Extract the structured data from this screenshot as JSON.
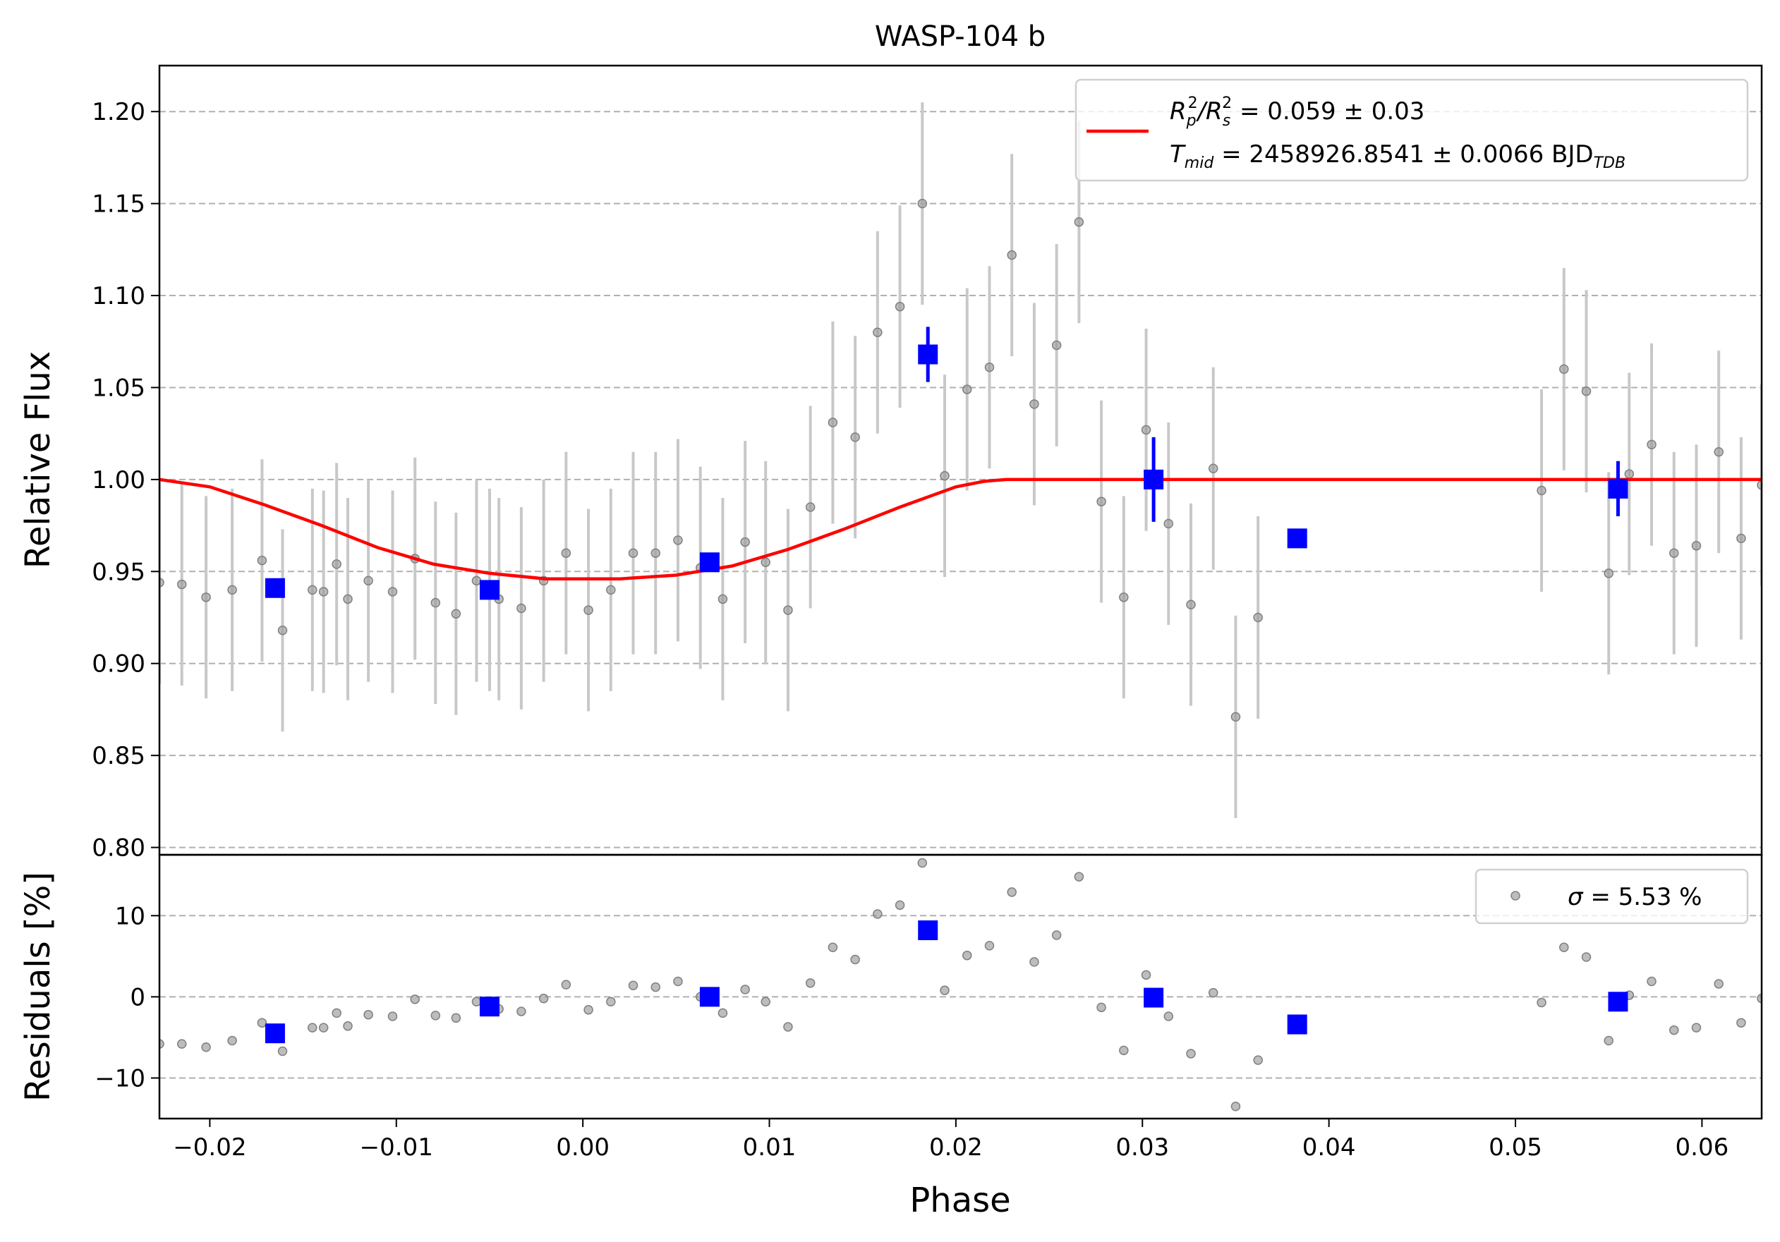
{
  "chart_data": [
    {
      "type": "scatter",
      "panel": "main",
      "title": "WASP-104 b",
      "xlabel": "",
      "ylabel": "Relative Flux",
      "xlim": [
        -0.0227,
        0.0632
      ],
      "ylim": [
        0.796,
        1.225
      ],
      "yticks": [
        0.8,
        0.85,
        0.9,
        0.95,
        1.0,
        1.05,
        1.1,
        1.15,
        1.2
      ],
      "ytick_labels": [
        "0.80",
        "0.85",
        "0.90",
        "0.95",
        "1.00",
        "1.05",
        "1.10",
        "1.15",
        "1.20"
      ],
      "grid": "horizontal dashed",
      "legend_placement": "top-right",
      "legend": {
        "line1": {
          "t1": "R",
          "sub1": "p",
          "sup1": "2",
          "t2": "/R",
          "sub2": "s",
          "sup2": "2",
          "t3": " = 0.059 ± 0.03"
        },
        "line2": {
          "t1": "T",
          "sub1": "mid",
          "t2": " = 2458926.8541 ± 0.0066 BJD",
          "sub2": "TDB"
        }
      },
      "colors": {
        "raw": "#999999",
        "raw_err": "#c8c8c8",
        "binned": "#0000ff",
        "model": "#ff0000"
      },
      "raw": {
        "x": [
          -0.0227,
          -0.0215,
          -0.0202,
          -0.0188,
          -0.0172,
          -0.0161,
          -0.0145,
          -0.0139,
          -0.0132,
          -0.0126,
          -0.0115,
          -0.0102,
          -0.009,
          -0.0079,
          -0.0068,
          -0.0057,
          -0.005,
          -0.0045,
          -0.0033,
          -0.0021,
          -0.0009,
          0.0003,
          0.0015,
          0.0027,
          0.0039,
          0.0051,
          0.0063,
          0.0075,
          0.0087,
          0.0098,
          0.011,
          0.0122,
          0.0134,
          0.0146,
          0.0158,
          0.017,
          0.0182,
          0.0194,
          0.0206,
          0.0218,
          0.023,
          0.0242,
          0.0254,
          0.0266,
          0.0278,
          0.029,
          0.0302,
          0.0314,
          0.0326,
          0.0338,
          0.035,
          0.0362,
          0.0514,
          0.0526,
          0.0538,
          0.055,
          0.0561,
          0.0573,
          0.0585,
          0.0597,
          0.0609,
          0.0621,
          0.0632
        ],
        "y": [
          0.944,
          0.943,
          0.936,
          0.94,
          0.956,
          0.918,
          0.94,
          0.939,
          0.954,
          0.935,
          0.945,
          0.939,
          0.957,
          0.933,
          0.927,
          0.945,
          0.94,
          0.935,
          0.93,
          0.945,
          0.96,
          0.929,
          0.94,
          0.96,
          0.96,
          0.967,
          0.952,
          0.935,
          0.966,
          0.955,
          0.929,
          0.985,
          1.031,
          1.023,
          1.08,
          1.094,
          1.15,
          1.002,
          1.049,
          1.061,
          1.122,
          1.041,
          1.073,
          1.14,
          0.988,
          0.936,
          1.027,
          0.976,
          0.932,
          1.006,
          0.871,
          0.925,
          0.994,
          1.06,
          1.048,
          0.949,
          1.003,
          1.019,
          0.96,
          0.964,
          1.015,
          0.968,
          0.997
        ],
        "err": [
          0.055,
          0.055,
          0.055,
          0.055,
          0.055,
          0.055,
          0.055,
          0.055,
          0.055,
          0.055,
          0.055,
          0.055,
          0.055,
          0.055,
          0.055,
          0.055,
          0.055,
          0.055,
          0.055,
          0.055,
          0.055,
          0.055,
          0.055,
          0.055,
          0.055,
          0.055,
          0.055,
          0.055,
          0.055,
          0.055,
          0.055,
          0.055,
          0.055,
          0.055,
          0.055,
          0.055,
          0.055,
          0.055,
          0.055,
          0.055,
          0.055,
          0.055,
          0.055,
          0.055,
          0.055,
          0.055,
          0.055,
          0.055,
          0.055,
          0.055,
          0.055,
          0.055,
          0.055,
          0.055,
          0.055,
          0.055,
          0.055,
          0.055,
          0.055,
          0.055,
          0.055,
          0.055,
          0.055
        ]
      },
      "binned": {
        "x": [
          -0.0165,
          -0.005,
          0.0068,
          0.0185,
          0.0306,
          0.0383,
          0.0555
        ],
        "y": [
          0.941,
          0.94,
          0.955,
          1.068,
          1.0,
          0.968,
          0.995
        ],
        "err": [
          0.003,
          0.003,
          0.003,
          0.015,
          0.023,
          0.003,
          0.015
        ]
      },
      "model": {
        "x": [
          -0.0227,
          -0.02,
          -0.017,
          -0.014,
          -0.011,
          -0.008,
          -0.005,
          -0.002,
          0.0,
          0.002,
          0.005,
          0.008,
          0.011,
          0.014,
          0.017,
          0.02,
          0.0215,
          0.0227,
          0.0632
        ],
        "y": [
          1.0,
          0.996,
          0.986,
          0.975,
          0.963,
          0.954,
          0.949,
          0.946,
          0.946,
          0.946,
          0.948,
          0.953,
          0.962,
          0.973,
          0.985,
          0.996,
          0.999,
          1.0,
          1.0
        ]
      }
    },
    {
      "type": "scatter",
      "panel": "residuals",
      "xlabel": "Phase",
      "ylabel": "Residuals [%]",
      "xlim": [
        -0.0227,
        0.0632
      ],
      "ylim": [
        -15,
        17.5
      ],
      "xticks": [
        -0.02,
        -0.01,
        0.0,
        0.01,
        0.02,
        0.03,
        0.04,
        0.05,
        0.06
      ],
      "xtick_labels": [
        "−0.02",
        "−0.01",
        "0.00",
        "0.01",
        "0.02",
        "0.03",
        "0.04",
        "0.05",
        "0.06"
      ],
      "yticks": [
        -10,
        0,
        10
      ],
      "ytick_labels": [
        "−10",
        "0",
        "10"
      ],
      "grid": "horizontal dashed",
      "legend_placement": "top-right",
      "legend": {
        "symbol": "σ",
        "text": " = 5.53 %"
      },
      "raw": {
        "x": [
          -0.0227,
          -0.0215,
          -0.0202,
          -0.0188,
          -0.0172,
          -0.0161,
          -0.0145,
          -0.0139,
          -0.0132,
          -0.0126,
          -0.0115,
          -0.0102,
          -0.009,
          -0.0079,
          -0.0068,
          -0.0057,
          -0.005,
          -0.0045,
          -0.0033,
          -0.0021,
          -0.0009,
          0.0003,
          0.0015,
          0.0027,
          0.0039,
          0.0051,
          0.0063,
          0.0075,
          0.0087,
          0.0098,
          0.011,
          0.0122,
          0.0134,
          0.0146,
          0.0158,
          0.017,
          0.0182,
          0.0194,
          0.0206,
          0.0218,
          0.023,
          0.0242,
          0.0254,
          0.0266,
          0.0278,
          0.029,
          0.0302,
          0.0314,
          0.0326,
          0.0338,
          0.035,
          0.0362,
          0.0514,
          0.0526,
          0.0538,
          0.055,
          0.0561,
          0.0573,
          0.0585,
          0.0597,
          0.0609,
          0.0621,
          0.0632
        ],
        "y": [
          -5.8,
          -5.8,
          -6.2,
          -5.4,
          -3.2,
          -6.7,
          -3.8,
          -3.8,
          -2.0,
          -3.6,
          -2.2,
          -2.4,
          -0.3,
          -2.3,
          -2.6,
          -0.6,
          -1.1,
          -1.5,
          -1.8,
          -0.2,
          1.5,
          -1.6,
          -0.6,
          1.4,
          1.2,
          1.9,
          0.0,
          -2.0,
          0.9,
          -0.6,
          -3.7,
          1.7,
          6.1,
          4.6,
          10.2,
          11.3,
          16.5,
          0.8,
          5.1,
          6.3,
          12.9,
          4.3,
          7.6,
          14.8,
          -1.3,
          -6.6,
          2.7,
          -2.4,
          -7.0,
          0.5,
          -13.5,
          -7.8,
          -0.7,
          6.1,
          4.9,
          -5.4,
          0.2,
          1.9,
          -4.1,
          -3.8,
          1.6,
          -3.2,
          -0.2
        ]
      },
      "binned": {
        "x": [
          -0.0165,
          -0.005,
          0.0068,
          0.0185,
          0.0306,
          0.0383,
          0.0555
        ],
        "y": [
          -4.5,
          -1.2,
          0.0,
          8.2,
          -0.1,
          -3.4,
          -0.6
        ]
      }
    }
  ]
}
